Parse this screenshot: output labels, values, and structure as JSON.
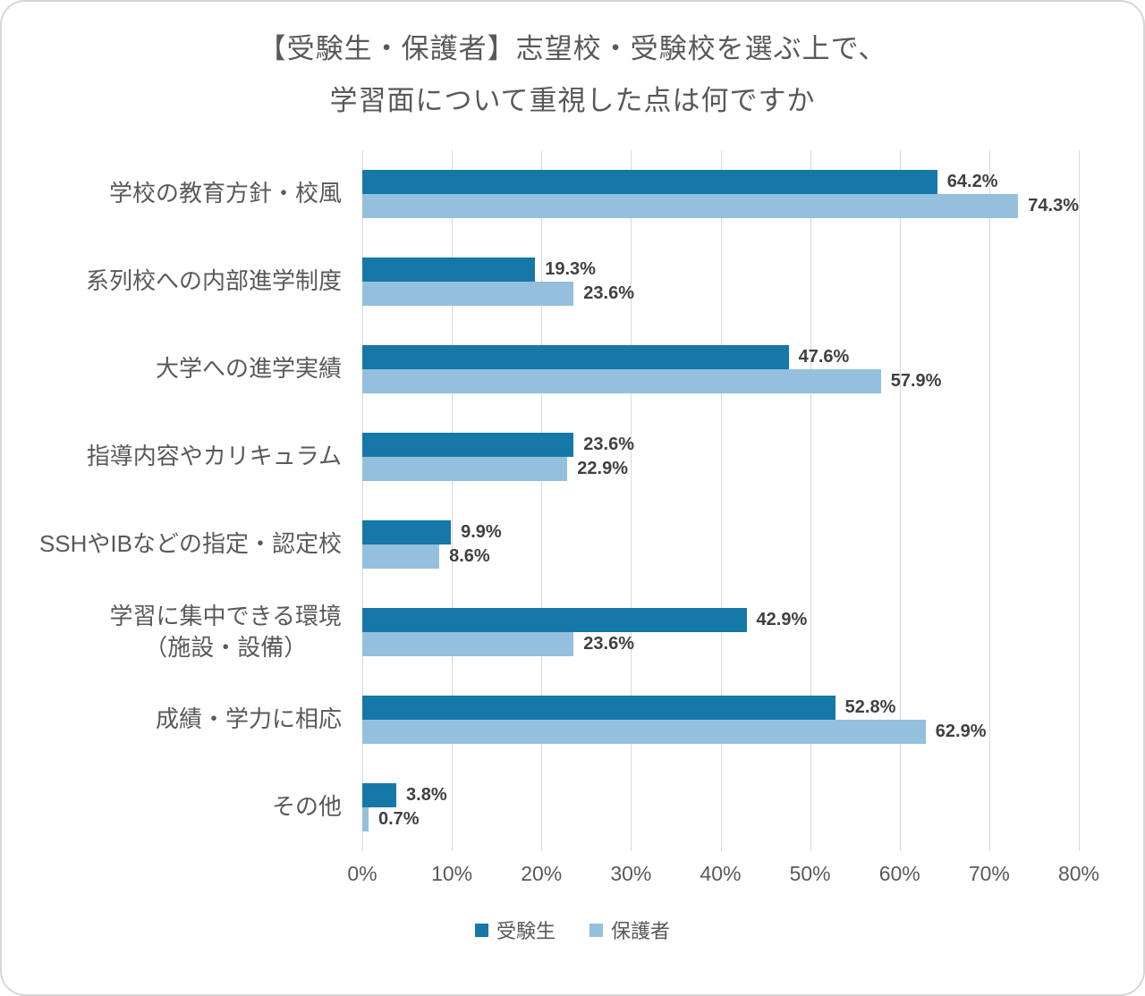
{
  "title": {
    "line1": "【受験生・保護者】志望校・受験校を選ぶ上で、",
    "line2": "学習面について重視した点は何ですか"
  },
  "chart_data": {
    "type": "bar",
    "orientation": "horizontal",
    "title": "【受験生・保護者】志望校・受験校を選ぶ上で、学習面について重視した点は何ですか",
    "categories": [
      "学校の教育方針・校風",
      "系列校への内部進学制度",
      "大学への進学実績",
      "指導内容やカリキュラム",
      "SSHやIBなどの指定・認定校",
      "学習に集中できる環境\n（施設・設備）",
      "成績・学力に相応",
      "その他"
    ],
    "series": [
      {
        "name": "受験生",
        "color": "#1678a8",
        "values": [
          64.2,
          19.3,
          47.6,
          23.6,
          9.9,
          42.9,
          52.8,
          3.8
        ]
      },
      {
        "name": "保護者",
        "color": "#94c0dd",
        "values": [
          74.3,
          23.6,
          57.9,
          22.9,
          8.6,
          23.6,
          62.9,
          0.7
        ]
      }
    ],
    "xlim": [
      0,
      80
    ],
    "xticks": [
      "0%",
      "10%",
      "20%",
      "30%",
      "40%",
      "50%",
      "60%",
      "70%",
      "80%"
    ],
    "value_label_suffix": "%",
    "grid": true,
    "legend_position": "bottom",
    "colors": {
      "text_gray": "#595959",
      "value_label": "#404040",
      "gridline": "#d9d9d9"
    }
  }
}
